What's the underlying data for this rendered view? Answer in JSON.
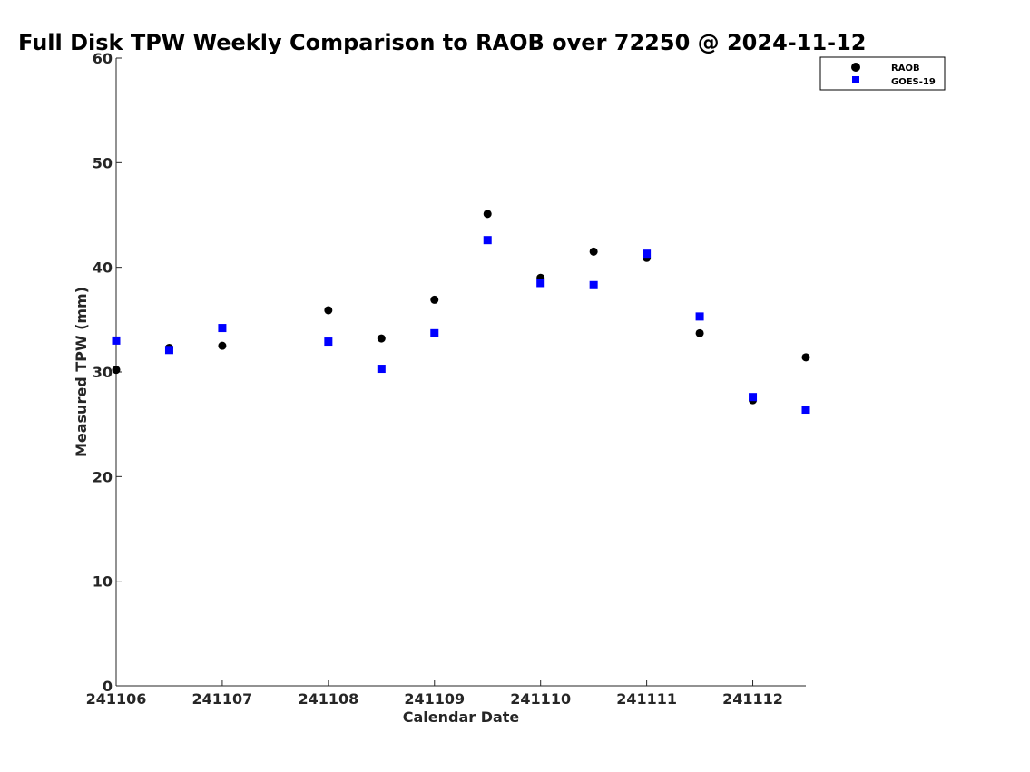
{
  "chart_data": {
    "type": "scatter",
    "title": "Full Disk TPW Weekly Comparison to RAOB over 72250 @ 2024-11-12",
    "xlabel": "Calendar Date",
    "ylabel": "Measured TPW (mm)",
    "xlim": [
      0,
      6.5
    ],
    "ylim": [
      0,
      60
    ],
    "x_ticks": [
      0,
      1,
      2,
      3,
      4,
      5,
      6
    ],
    "x_tick_labels": [
      "241106",
      "241107",
      "241108",
      "241109",
      "241110",
      "241111",
      "241112"
    ],
    "y_ticks": [
      0,
      10,
      20,
      30,
      40,
      50,
      60
    ],
    "y_tick_labels": [
      "0",
      "10",
      "20",
      "30",
      "40",
      "50",
      "60"
    ],
    "grid": false,
    "legend_position": "top-right",
    "series": [
      {
        "name": "RAOB",
        "marker": "circle",
        "color": "#000000",
        "points": [
          {
            "x": 0.0,
            "y": 30.2
          },
          {
            "x": 0.5,
            "y": 32.3
          },
          {
            "x": 1.0,
            "y": 32.5
          },
          {
            "x": 2.0,
            "y": 35.9
          },
          {
            "x": 2.5,
            "y": 33.2
          },
          {
            "x": 3.0,
            "y": 36.9
          },
          {
            "x": 3.5,
            "y": 45.1
          },
          {
            "x": 4.0,
            "y": 39.0
          },
          {
            "x": 4.5,
            "y": 41.5
          },
          {
            "x": 5.0,
            "y": 40.9
          },
          {
            "x": 5.5,
            "y": 33.7
          },
          {
            "x": 6.0,
            "y": 27.3
          },
          {
            "x": 6.5,
            "y": 31.4
          }
        ]
      },
      {
        "name": "GOES-19",
        "marker": "square",
        "color": "#0000ff",
        "points": [
          {
            "x": 0.0,
            "y": 33.0
          },
          {
            "x": 0.5,
            "y": 32.1
          },
          {
            "x": 1.0,
            "y": 34.2
          },
          {
            "x": 2.0,
            "y": 32.9
          },
          {
            "x": 2.5,
            "y": 30.3
          },
          {
            "x": 3.0,
            "y": 33.7
          },
          {
            "x": 3.5,
            "y": 42.6
          },
          {
            "x": 4.0,
            "y": 38.5
          },
          {
            "x": 4.5,
            "y": 38.3
          },
          {
            "x": 5.0,
            "y": 41.3
          },
          {
            "x": 5.5,
            "y": 35.3
          },
          {
            "x": 6.0,
            "y": 27.6
          },
          {
            "x": 6.5,
            "y": 26.4
          }
        ]
      }
    ]
  }
}
